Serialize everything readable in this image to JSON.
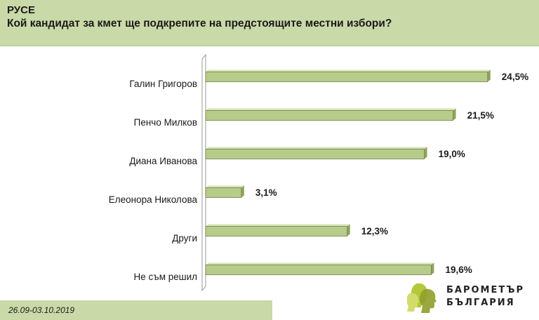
{
  "header": {
    "region": "РУСЕ",
    "question": "Кой кандидат за кмет ще подкрепите на предстоящите местни избори?"
  },
  "chart_data": {
    "type": "bar",
    "orientation": "horizontal",
    "title": "Кой кандидат за кмет ще подкрепите на предстоящите местни избори?",
    "categories": [
      "Галин Григоров",
      "Пенчо Милков",
      "Диана Иванова",
      "Елеонора Николова",
      "Други",
      "Не съм решил"
    ],
    "values": [
      24.5,
      21.5,
      19.0,
      3.1,
      12.3,
      19.6
    ],
    "value_labels": [
      "24,5%",
      "21,5%",
      "19,0%",
      "3,1%",
      "12,3%",
      "19,6%"
    ],
    "xlim": [
      0,
      25
    ],
    "grid": false,
    "legend": "none",
    "bar_color": "#b8cc8a",
    "bar_edge_color": "#6f7f4a"
  },
  "footer": {
    "date": "26.09-03.10.2019",
    "logo_line1": "БАРОМЕТЪР",
    "logo_line2": "БЪЛГАРИЯ",
    "logo_color": "#b5c73a"
  }
}
